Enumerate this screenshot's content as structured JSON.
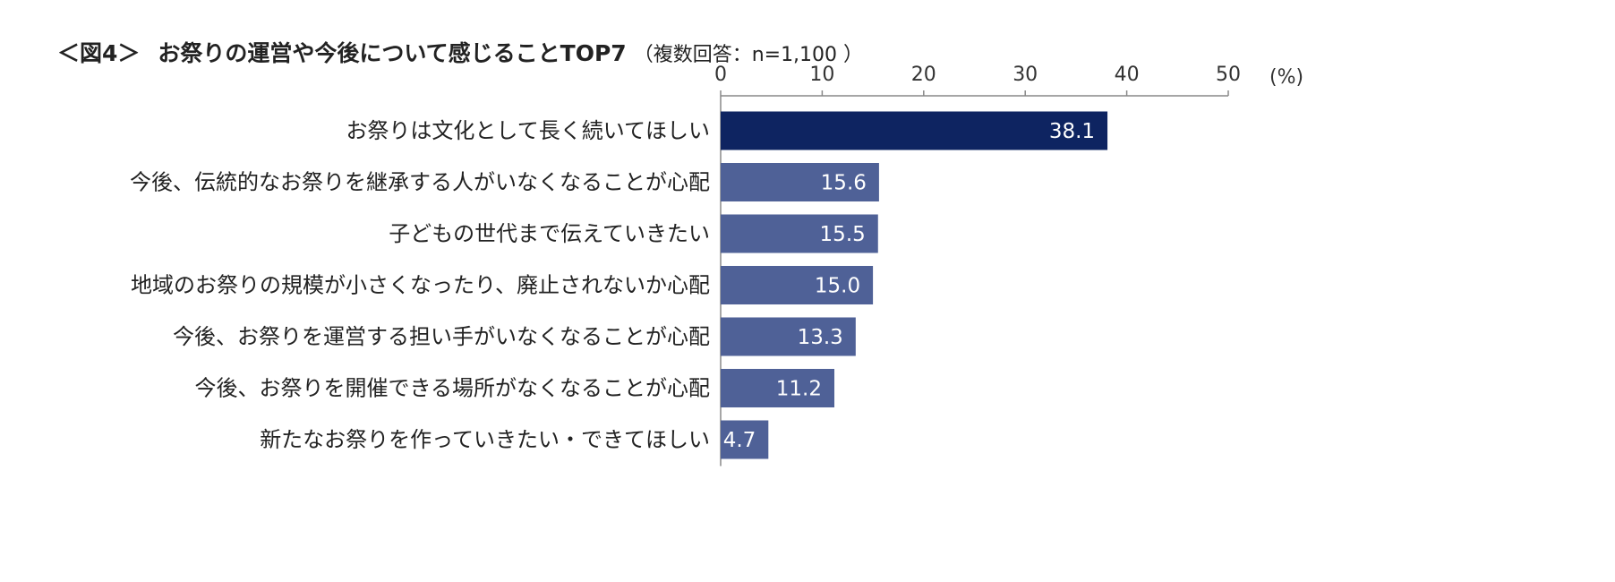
{
  "figure": {
    "label": "＜図4＞",
    "title": "お祭りの運営や今後について感じることTOP7",
    "subtitle": "（複数回答：n=1,100 ）"
  },
  "colors": {
    "highlight_bar": "#0e2461",
    "bar": "#4f6197",
    "axis": "#888888"
  },
  "chart_data": {
    "type": "bar",
    "orientation": "horizontal",
    "categories": [
      "お祭りは文化として長く続いてほしい",
      "今後、伝統的なお祭りを継承する人がいなくなることが心配",
      "子どもの世代まで伝えていきたい",
      "地域のお祭りの規模が小さくなったり、廃止されないか心配",
      "今後、お祭りを運営する担い手がいなくなることが心配",
      "今後、お祭りを開催できる場所がなくなることが心配",
      "新たなお祭りを作っていきたい・できてほしい"
    ],
    "values": [
      38.1,
      15.6,
      15.5,
      15.0,
      13.3,
      11.2,
      4.7
    ],
    "value_labels": [
      "38.1",
      "15.6",
      "15.5",
      "15.0",
      "13.3",
      "11.2",
      "4.7"
    ],
    "xlim": [
      0,
      50
    ],
    "xticks": [
      "0",
      "10",
      "20",
      "30",
      "40",
      "50"
    ],
    "xunit": "(%)",
    "axis_position": "top",
    "grid": false
  }
}
